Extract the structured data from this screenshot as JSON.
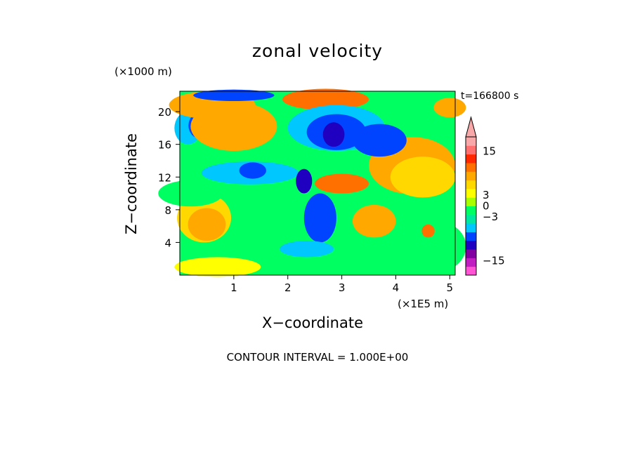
{
  "chart_data": {
    "type": "heatmap",
    "title": "zonal velocity",
    "xlabel": "X−coordinate",
    "ylabel": "Z−coordinate",
    "x_unit_label": "(×1E5 m)",
    "y_unit_label": "(×1000 m)",
    "time_label": "t=166800 s",
    "contour_interval_label": "CONTOUR INTERVAL = 1.000E+00",
    "xlim": [
      0,
      5.1
    ],
    "ylim": [
      0,
      22.5
    ],
    "x_ticks": [
      1,
      2,
      3,
      4,
      5
    ],
    "y_ticks": [
      4,
      8,
      12,
      16,
      20
    ],
    "colorbar": {
      "range": [
        -19,
        19
      ],
      "tick_labels": [
        "15",
        "3",
        "0",
        "−3",
        "−15"
      ],
      "tick_values": [
        15,
        3,
        0,
        -3,
        -15
      ],
      "colors": [
        "#ff55d5",
        "#c01ec0",
        "#8000a0",
        "#2000c0",
        "#0044ff",
        "#00c8ff",
        "#00e8a0",
        "#00ff60",
        "#a8ff00",
        "#ffff00",
        "#ffd800",
        "#ffa800",
        "#ff7000",
        "#ff2800",
        "#ff7070",
        "#f8a8a8"
      ]
    }
  }
}
